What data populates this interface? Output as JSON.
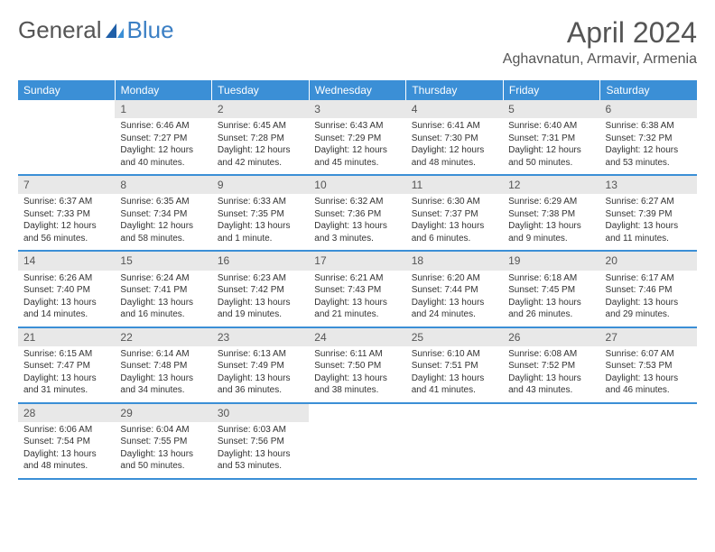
{
  "logo": {
    "general": "General",
    "blue": "Blue"
  },
  "title": "April 2024",
  "location": "Aghavnatun, Armavir, Armenia",
  "colors": {
    "header_bg": "#3b8fd6",
    "header_text": "#ffffff",
    "daynum_bg": "#e8e8e8",
    "cell_border": "#3b8fd6",
    "logo_blue": "#3b7fc4",
    "text": "#333333"
  },
  "weekdays": [
    "Sunday",
    "Monday",
    "Tuesday",
    "Wednesday",
    "Thursday",
    "Friday",
    "Saturday"
  ],
  "weeks": [
    [
      {
        "n": "",
        "sr": "",
        "ss": "",
        "dl": ""
      },
      {
        "n": "1",
        "sr": "6:46 AM",
        "ss": "7:27 PM",
        "dl": "12 hours and 40 minutes."
      },
      {
        "n": "2",
        "sr": "6:45 AM",
        "ss": "7:28 PM",
        "dl": "12 hours and 42 minutes."
      },
      {
        "n": "3",
        "sr": "6:43 AM",
        "ss": "7:29 PM",
        "dl": "12 hours and 45 minutes."
      },
      {
        "n": "4",
        "sr": "6:41 AM",
        "ss": "7:30 PM",
        "dl": "12 hours and 48 minutes."
      },
      {
        "n": "5",
        "sr": "6:40 AM",
        "ss": "7:31 PM",
        "dl": "12 hours and 50 minutes."
      },
      {
        "n": "6",
        "sr": "6:38 AM",
        "ss": "7:32 PM",
        "dl": "12 hours and 53 minutes."
      }
    ],
    [
      {
        "n": "7",
        "sr": "6:37 AM",
        "ss": "7:33 PM",
        "dl": "12 hours and 56 minutes."
      },
      {
        "n": "8",
        "sr": "6:35 AM",
        "ss": "7:34 PM",
        "dl": "12 hours and 58 minutes."
      },
      {
        "n": "9",
        "sr": "6:33 AM",
        "ss": "7:35 PM",
        "dl": "13 hours and 1 minute."
      },
      {
        "n": "10",
        "sr": "6:32 AM",
        "ss": "7:36 PM",
        "dl": "13 hours and 3 minutes."
      },
      {
        "n": "11",
        "sr": "6:30 AM",
        "ss": "7:37 PM",
        "dl": "13 hours and 6 minutes."
      },
      {
        "n": "12",
        "sr": "6:29 AM",
        "ss": "7:38 PM",
        "dl": "13 hours and 9 minutes."
      },
      {
        "n": "13",
        "sr": "6:27 AM",
        "ss": "7:39 PM",
        "dl": "13 hours and 11 minutes."
      }
    ],
    [
      {
        "n": "14",
        "sr": "6:26 AM",
        "ss": "7:40 PM",
        "dl": "13 hours and 14 minutes."
      },
      {
        "n": "15",
        "sr": "6:24 AM",
        "ss": "7:41 PM",
        "dl": "13 hours and 16 minutes."
      },
      {
        "n": "16",
        "sr": "6:23 AM",
        "ss": "7:42 PM",
        "dl": "13 hours and 19 minutes."
      },
      {
        "n": "17",
        "sr": "6:21 AM",
        "ss": "7:43 PM",
        "dl": "13 hours and 21 minutes."
      },
      {
        "n": "18",
        "sr": "6:20 AM",
        "ss": "7:44 PM",
        "dl": "13 hours and 24 minutes."
      },
      {
        "n": "19",
        "sr": "6:18 AM",
        "ss": "7:45 PM",
        "dl": "13 hours and 26 minutes."
      },
      {
        "n": "20",
        "sr": "6:17 AM",
        "ss": "7:46 PM",
        "dl": "13 hours and 29 minutes."
      }
    ],
    [
      {
        "n": "21",
        "sr": "6:15 AM",
        "ss": "7:47 PM",
        "dl": "13 hours and 31 minutes."
      },
      {
        "n": "22",
        "sr": "6:14 AM",
        "ss": "7:48 PM",
        "dl": "13 hours and 34 minutes."
      },
      {
        "n": "23",
        "sr": "6:13 AM",
        "ss": "7:49 PM",
        "dl": "13 hours and 36 minutes."
      },
      {
        "n": "24",
        "sr": "6:11 AM",
        "ss": "7:50 PM",
        "dl": "13 hours and 38 minutes."
      },
      {
        "n": "25",
        "sr": "6:10 AM",
        "ss": "7:51 PM",
        "dl": "13 hours and 41 minutes."
      },
      {
        "n": "26",
        "sr": "6:08 AM",
        "ss": "7:52 PM",
        "dl": "13 hours and 43 minutes."
      },
      {
        "n": "27",
        "sr": "6:07 AM",
        "ss": "7:53 PM",
        "dl": "13 hours and 46 minutes."
      }
    ],
    [
      {
        "n": "28",
        "sr": "6:06 AM",
        "ss": "7:54 PM",
        "dl": "13 hours and 48 minutes."
      },
      {
        "n": "29",
        "sr": "6:04 AM",
        "ss": "7:55 PM",
        "dl": "13 hours and 50 minutes."
      },
      {
        "n": "30",
        "sr": "6:03 AM",
        "ss": "7:56 PM",
        "dl": "13 hours and 53 minutes."
      },
      {
        "n": "",
        "sr": "",
        "ss": "",
        "dl": ""
      },
      {
        "n": "",
        "sr": "",
        "ss": "",
        "dl": ""
      },
      {
        "n": "",
        "sr": "",
        "ss": "",
        "dl": ""
      },
      {
        "n": "",
        "sr": "",
        "ss": "",
        "dl": ""
      }
    ]
  ],
  "labels": {
    "sunrise": "Sunrise: ",
    "sunset": "Sunset: ",
    "daylight": "Daylight: "
  }
}
